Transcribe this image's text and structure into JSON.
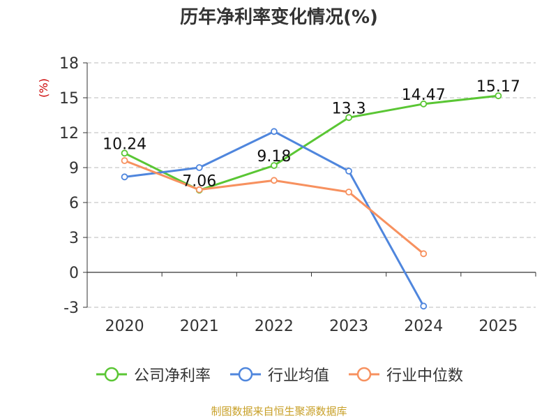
{
  "colors": {
    "company": "#5ac634",
    "industry_avg": "#4f86dd",
    "industry_median": "#f7915f",
    "grid": "#bbbbbb",
    "axis": "#333333",
    "ylabel": "#cc0000",
    "source": "#c8a028"
  },
  "legend_items": [
    {
      "label": "公司净利率",
      "color": "#5ac634"
    },
    {
      "label": "行业均值",
      "color": "#4f86dd"
    },
    {
      "label": "行业中位数",
      "color": "#f7915f"
    }
  ],
  "source_note": "制图数据来自恒生聚源数据库",
  "chart_data": {
    "type": "line",
    "title": "历年净利率变化情况(%)",
    "ylabel": "(%)",
    "xlabel": "",
    "categories": [
      "2020",
      "2021",
      "2022",
      "2023",
      "2024",
      "2025"
    ],
    "ylim": [
      -3,
      18
    ],
    "yticks": [
      -3,
      0,
      3,
      6,
      9,
      12,
      15,
      18
    ],
    "grid": true,
    "legend_position": "bottom",
    "series": [
      {
        "name": "公司净利率",
        "color": "#5ac634",
        "values": [
          10.24,
          7.06,
          9.18,
          13.3,
          14.47,
          15.17
        ],
        "labels": [
          "10.24",
          "7.06",
          "9.18",
          "13.3",
          "14.47",
          "15.17"
        ]
      },
      {
        "name": "行业均值",
        "color": "#4f86dd",
        "values": [
          8.2,
          9.0,
          12.1,
          8.7,
          -2.9,
          null
        ]
      },
      {
        "name": "行业中位数",
        "color": "#f7915f",
        "values": [
          9.6,
          7.1,
          7.9,
          6.9,
          1.6,
          null
        ]
      }
    ]
  }
}
